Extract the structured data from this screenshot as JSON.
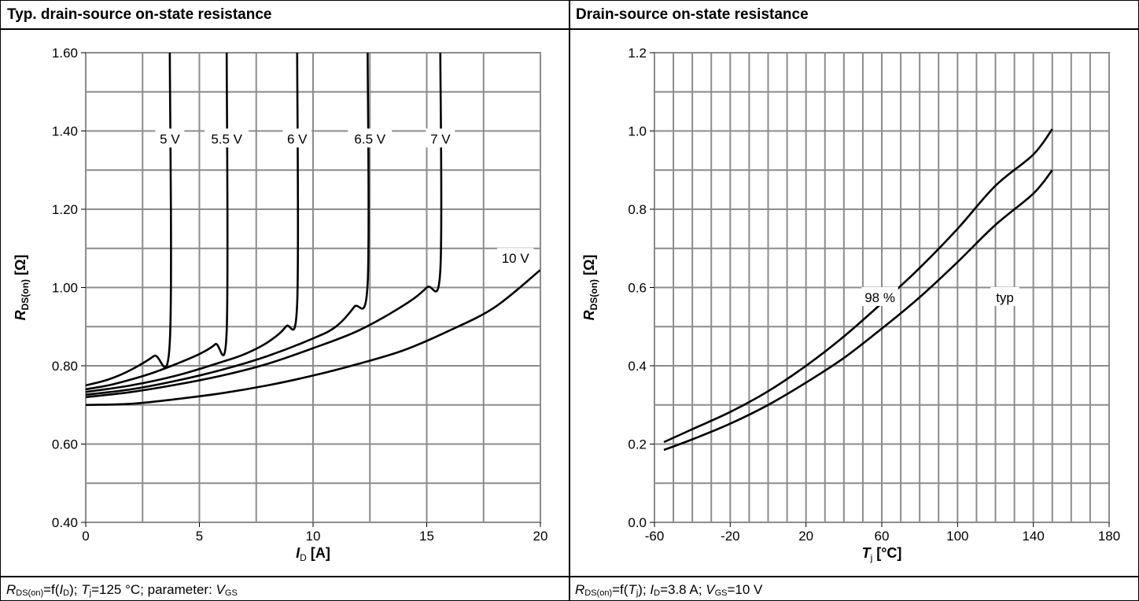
{
  "left_panel": {
    "title": "Typ. drain-source on-state resistance",
    "caption": {
      "r": "R",
      "r_sub": "DS(on)",
      "t1": "=f(",
      "i": "I",
      "i_sub": "D",
      "t2": "); ",
      "tj": "T",
      "tj_sub": "j",
      "t3": "=125 °C; parameter: ",
      "v": "V",
      "v_sub": "GS"
    }
  },
  "right_panel": {
    "title": "Drain-source on-state resistance",
    "caption": {
      "r": "R",
      "r_sub": "DS(on)",
      "t1": "=f(",
      "tj": "T",
      "tj_sub": "j",
      "t2": "); ",
      "i": "I",
      "i_sub": "D",
      "t3": "=3.8 A; ",
      "v": "V",
      "v_sub": "GS",
      "t4": "=10 V"
    }
  },
  "chart_data": [
    {
      "type": "line",
      "title": "Typ. drain-source on-state resistance",
      "xlabel": {
        "main": "I",
        "sub": "D",
        "unit": " [A]"
      },
      "ylabel": {
        "main": "R",
        "sub": "DS(on)",
        "unit": " [Ω]"
      },
      "xlim": [
        0,
        20
      ],
      "ylim": [
        0.4,
        1.6
      ],
      "x_ticks": [
        0,
        5,
        10,
        15,
        20
      ],
      "x_tick_labels": [
        "0",
        "5",
        "10",
        "15",
        "20"
      ],
      "y_ticks": [
        0.4,
        0.6,
        0.8,
        1.0,
        1.2,
        1.4,
        1.6
      ],
      "y_tick_labels": [
        "0.40",
        "0.60",
        "0.80",
        "1.00",
        "1.20",
        "1.40",
        "1.60"
      ],
      "x_minor_step": 2.5,
      "y_minor_step": 0.1,
      "grid": true,
      "series": [
        {
          "name": "5 V",
          "label_at": [
            3.7,
            1.38
          ],
          "points": [
            [
              0,
              0.75
            ],
            [
              1,
              0.765
            ],
            [
              2,
              0.79
            ],
            [
              3,
              0.825
            ],
            [
              3.7,
              0.862
            ],
            [
              3.7,
              1.6
            ]
          ]
        },
        {
          "name": "5.5 V",
          "label_at": [
            6.2,
            1.38
          ],
          "points": [
            [
              0,
              0.74
            ],
            [
              1,
              0.75
            ],
            [
              2,
              0.765
            ],
            [
              3,
              0.783
            ],
            [
              4,
              0.805
            ],
            [
              5,
              0.83
            ],
            [
              5.7,
              0.855
            ],
            [
              6.2,
              0.89
            ],
            [
              6.2,
              1.6
            ]
          ]
        },
        {
          "name": "6 V",
          "label_at": [
            9.3,
            1.38
          ],
          "points": [
            [
              0,
              0.733
            ],
            [
              2,
              0.75
            ],
            [
              4,
              0.775
            ],
            [
              6,
              0.81
            ],
            [
              7,
              0.83
            ],
            [
              8,
              0.86
            ],
            [
              8.8,
              0.9
            ],
            [
              9.3,
              0.96
            ],
            [
              9.3,
              1.6
            ]
          ]
        },
        {
          "name": "6.5 V",
          "label_at": [
            12.5,
            1.38
          ],
          "points": [
            [
              0,
              0.726
            ],
            [
              2,
              0.74
            ],
            [
              4,
              0.762
            ],
            [
              6,
              0.79
            ],
            [
              8,
              0.825
            ],
            [
              10,
              0.87
            ],
            [
              11,
              0.9
            ],
            [
              11.8,
              0.95
            ],
            [
              12.4,
              1.01
            ],
            [
              12.4,
              1.6
            ]
          ]
        },
        {
          "name": "7 V",
          "label_at": [
            15.6,
            1.38
          ],
          "points": [
            [
              0,
              0.72
            ],
            [
              2,
              0.733
            ],
            [
              4,
              0.752
            ],
            [
              6,
              0.775
            ],
            [
              8,
              0.805
            ],
            [
              10,
              0.845
            ],
            [
              12,
              0.89
            ],
            [
              14,
              0.955
            ],
            [
              15,
              1.0
            ],
            [
              15.6,
              1.045
            ],
            [
              15.6,
              1.6
            ]
          ]
        },
        {
          "name": "10 V",
          "label_at": [
            18.9,
            1.075
          ],
          "points": [
            [
              0,
              0.7
            ],
            [
              2,
              0.703
            ],
            [
              4,
              0.715
            ],
            [
              6,
              0.73
            ],
            [
              8,
              0.75
            ],
            [
              10,
              0.775
            ],
            [
              12,
              0.805
            ],
            [
              14,
              0.84
            ],
            [
              16,
              0.89
            ],
            [
              18,
              0.95
            ],
            [
              20,
              1.045
            ]
          ]
        }
      ]
    },
    {
      "type": "line",
      "title": "Drain-source on-state resistance",
      "xlabel": {
        "main": "T",
        "sub": "j",
        "unit": " [°C]"
      },
      "ylabel": {
        "main": "R",
        "sub": "DS(on)",
        "unit": " [Ω]"
      },
      "xlim": [
        -60,
        180
      ],
      "ylim": [
        0,
        1.2
      ],
      "x_ticks": [
        -60,
        -20,
        20,
        60,
        100,
        140,
        180
      ],
      "x_tick_labels": [
        "-60",
        "-20",
        "20",
        "60",
        "100",
        "140",
        "180"
      ],
      "y_ticks": [
        0,
        0.2,
        0.4,
        0.6,
        0.8,
        1.0,
        1.2
      ],
      "y_tick_labels": [
        "0.0",
        "0.2",
        "0.4",
        "0.6",
        "0.8",
        "1.0",
        "1.2"
      ],
      "x_minor_step": 10,
      "y_minor_step": 0.1,
      "grid": true,
      "series": [
        {
          "name": "98 %",
          "label_at": [
            59,
            0.575
          ],
          "points": [
            [
              -55,
              0.205
            ],
            [
              -40,
              0.238
            ],
            [
              -20,
              0.282
            ],
            [
              0,
              0.335
            ],
            [
              20,
              0.4
            ],
            [
              40,
              0.475
            ],
            [
              60,
              0.56
            ],
            [
              80,
              0.65
            ],
            [
              100,
              0.75
            ],
            [
              120,
              0.86
            ],
            [
              140,
              0.94
            ],
            [
              150,
              1.005
            ]
          ]
        },
        {
          "name": "typ",
          "label_at": [
            125,
            0.575
          ],
          "points": [
            [
              -55,
              0.185
            ],
            [
              -40,
              0.212
            ],
            [
              -20,
              0.252
            ],
            [
              0,
              0.3
            ],
            [
              20,
              0.357
            ],
            [
              40,
              0.42
            ],
            [
              60,
              0.495
            ],
            [
              80,
              0.575
            ],
            [
              100,
              0.665
            ],
            [
              120,
              0.76
            ],
            [
              140,
              0.84
            ],
            [
              150,
              0.9
            ]
          ]
        }
      ]
    }
  ]
}
